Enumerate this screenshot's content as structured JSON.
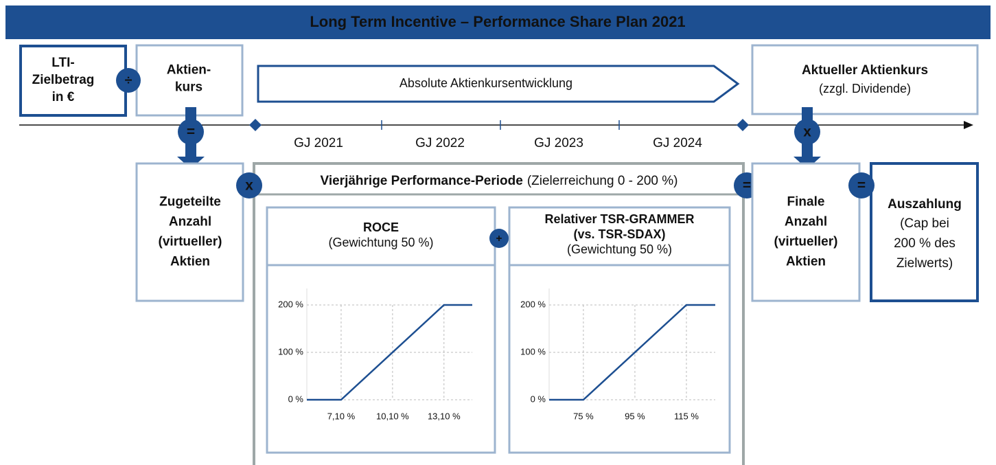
{
  "header": {
    "title": "Long Term Incentive – Performance Share Plan 2021"
  },
  "lti": {
    "lines": [
      "LTI-",
      "Zielbetrag",
      "in €"
    ]
  },
  "price": {
    "lines": [
      "Aktien-",
      "kurs"
    ]
  },
  "trend": {
    "label": "Absolute Aktienkursentwicklung"
  },
  "current": {
    "title": "Aktueller Aktienkurs",
    "subtitle": "(zzgl. Dividende)"
  },
  "timeline": {
    "years": [
      "GJ 2021",
      "GJ 2022",
      "GJ 2023",
      "GJ 2024"
    ]
  },
  "allocated": {
    "lines": [
      "Zugeteilte",
      "Anzahl",
      "(virtueller)",
      "Aktien"
    ]
  },
  "period": {
    "title": "Vierjährige Performance-Periode",
    "note": "(Zielerreichung 0 - 200 %)"
  },
  "final": {
    "lines": [
      "Finale",
      "Anzahl",
      "(virtueller)",
      "Aktien"
    ]
  },
  "payout": {
    "title": "Auszahlung",
    "lines": [
      "(Cap bei",
      "200 % des",
      "Zielwerts)"
    ]
  },
  "operators": {
    "divide": "÷",
    "equals_left": "=",
    "times_right": "x",
    "times_period": "x",
    "equals_period": "=",
    "equals_payout": "=",
    "plus": "+"
  },
  "kpis": [
    {
      "title_lines": [
        "ROCE"
      ],
      "weight": "(Gewichtung 50 %)",
      "xlim": [
        5.1,
        14.75
      ],
      "ylim": [
        0,
        200
      ],
      "xticks": [
        {
          "value": 7.1,
          "label": "7,10 %"
        },
        {
          "value": 10.1,
          "label": "10,10 %"
        },
        {
          "value": 13.1,
          "label": "13,10 %"
        }
      ],
      "yticks": [
        {
          "value": 0,
          "label": "0 %"
        },
        {
          "value": 100,
          "label": "100 %"
        },
        {
          "value": 200,
          "label": "200 %"
        }
      ],
      "curve": {
        "x": [
          5.1,
          7.1,
          13.1,
          14.75
        ],
        "y": [
          0,
          0,
          200,
          200
        ]
      }
    },
    {
      "title_lines": [
        "Relativer TSR-GRAMMER",
        "(vs. TSR-SDAX)"
      ],
      "weight": "(Gewichtung 50 %)",
      "xlim": [
        61.7,
        126.2
      ],
      "ylim": [
        0,
        200
      ],
      "xticks": [
        {
          "value": 75,
          "label": "75 %"
        },
        {
          "value": 95,
          "label": "95 %"
        },
        {
          "value": 115,
          "label": "115 %"
        }
      ],
      "yticks": [
        {
          "value": 0,
          "label": "0 %"
        },
        {
          "value": 100,
          "label": "100 %"
        },
        {
          "value": 200,
          "label": "200 %"
        }
      ],
      "curve": {
        "x": [
          61.7,
          75,
          115,
          126.2
        ],
        "y": [
          0,
          0,
          200,
          200
        ]
      }
    }
  ]
}
